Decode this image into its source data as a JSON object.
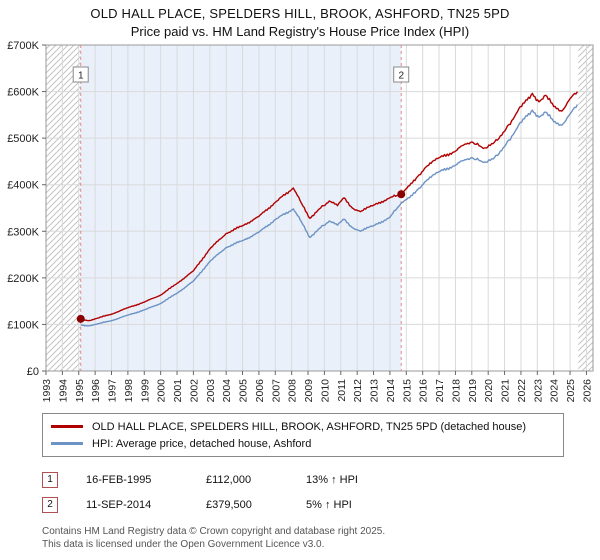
{
  "title": "OLD HALL PLACE, SPELDERS HILL, BROOK, ASHFORD, TN25 5PD",
  "subtitle": "Price paid vs. HM Land Registry's House Price Index (HPI)",
  "footer": {
    "line1": "Contains HM Land Registry data © Crown copyright and database right 2025.",
    "line2": "This data is licensed under the Open Government Licence v3.0."
  },
  "chart_data": {
    "type": "line",
    "title": "OLD HALL PLACE, SPELDERS HILL, BROOK, ASHFORD, TN25 5PD",
    "subtitle": "Price paid vs. HM Land Registry's House Price Index (HPI)",
    "xlabel": "",
    "ylabel": "",
    "xlim": [
      1993,
      2026.4
    ],
    "ylim": [
      0,
      700000
    ],
    "grid": true,
    "legend_position": "bottom",
    "x_years": [
      1993,
      1994,
      1995,
      1996,
      1997,
      1998,
      1999,
      2000,
      2001,
      2002,
      2003,
      2004,
      2005,
      2006,
      2007,
      2008,
      2009,
      2010,
      2011,
      2012,
      2013,
      2014,
      2015,
      2016,
      2017,
      2018,
      2019,
      2020,
      2021,
      2022,
      2023,
      2024,
      2025,
      2026
    ],
    "y_tick_values": [
      0,
      100000,
      200000,
      300000,
      400000,
      500000,
      600000,
      700000
    ],
    "y_tick_labels": [
      "£0",
      "£100K",
      "£200K",
      "£300K",
      "£400K",
      "£500K",
      "£600K",
      "£700K"
    ],
    "hatch_regions": [
      [
        1993,
        1995.12
      ],
      [
        2025.5,
        2026.4
      ]
    ],
    "shaded_region": [
      1995.12,
      2014.69
    ],
    "shaded_color": "#e9f0fa",
    "x": [
      1995.12,
      1995.6,
      1996,
      1997,
      1998,
      1999,
      2000,
      2001,
      2002,
      2003,
      2004,
      2005,
      2006,
      2007,
      2008.1,
      2008.6,
      2009.1,
      2009.6,
      2010.3,
      2010.8,
      2011.2,
      2011.7,
      2012.2,
      2013,
      2014,
      2014.69,
      2015.2,
      2015.7,
      2016.2,
      2017,
      2018,
      2018.5,
      2019,
      2019.7,
      2020.3,
      2021,
      2021.7,
      2022.3,
      2022.7,
      2023.1,
      2023.5,
      2024,
      2024.5,
      2025,
      2025.45
    ],
    "series": [
      {
        "id": "price-paid",
        "name": "OLD HALL PLACE, SPELDERS HILL, BROOK, ASHFORD, TN25 5PD (detached house)",
        "color": "#b00000",
        "values": [
          112000,
          108000,
          112000,
          122000,
          136000,
          148000,
          163000,
          188000,
          215000,
          262000,
          295000,
          312000,
          332000,
          362000,
          393000,
          360000,
          328000,
          345000,
          365000,
          355000,
          372000,
          350000,
          342000,
          356000,
          372000,
          379500,
          398000,
          418000,
          438000,
          458000,
          472000,
          485000,
          492000,
          478000,
          488000,
          515000,
          552000,
          582000,
          596000,
          578000,
          592000,
          568000,
          558000,
          585000,
          600000
        ]
      },
      {
        "id": "hpi-average",
        "name": "HPI: Average price, detached house, Ashford",
        "color": "#6c93c4",
        "values": [
          99000,
          97000,
          100000,
          108000,
          120000,
          131000,
          145000,
          167000,
          193000,
          235000,
          265000,
          280000,
          298000,
          325000,
          348000,
          320000,
          287000,
          303000,
          322000,
          313000,
          326000,
          308000,
          300000,
          312000,
          330000,
          361000,
          372000,
          390000,
          408000,
          428000,
          442000,
          452000,
          458000,
          448000,
          455000,
          482000,
          518000,
          548000,
          560000,
          545000,
          556000,
          535000,
          528000,
          552000,
          572000
        ]
      }
    ],
    "sales": [
      {
        "n": "1",
        "x": 1995.12,
        "value": 112000,
        "date": "16-FEB-1995",
        "price": "£112,000",
        "hpi": "13% ↑ HPI"
      },
      {
        "n": "2",
        "x": 2014.69,
        "value": 379500,
        "date": "11-SEP-2014",
        "price": "£379,500",
        "hpi": "5% ↑ HPI"
      }
    ]
  }
}
